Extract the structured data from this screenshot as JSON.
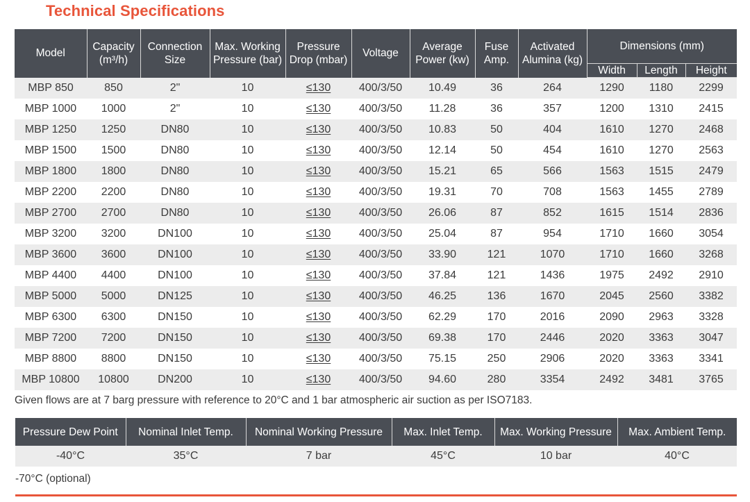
{
  "title": "Technical Specifications",
  "spec_table": {
    "headers": {
      "model": "Model",
      "capacity": "Capacity (m³/h)",
      "connection_size": "Connection Size",
      "max_working_pressure": "Max. Working Pressure (bar)",
      "pressure_drop": "Pressure Drop (mbar)",
      "voltage": "Voltage",
      "average_power": "Average Power (kw)",
      "fuse_amp": "Fuse Amp.",
      "activated_alumina": "Activated Alumina (kg)",
      "dimensions": "Dimensions (mm)",
      "width": "Width",
      "length": "Length",
      "height": "Height"
    },
    "rows": [
      [
        "MBP 850",
        "850",
        "2\"",
        "10",
        "≤130",
        "400/3/50",
        "10.49",
        "36",
        "264",
        "1290",
        "1180",
        "2299"
      ],
      [
        "MBP 1000",
        "1000",
        "2\"",
        "10",
        "≤130",
        "400/3/50",
        "11.28",
        "36",
        "357",
        "1200",
        "1310",
        "2415"
      ],
      [
        "MBP 1250",
        "1250",
        "DN80",
        "10",
        "≤130",
        "400/3/50",
        "10.83",
        "50",
        "404",
        "1610",
        "1270",
        "2468"
      ],
      [
        "MBP 1500",
        "1500",
        "DN80",
        "10",
        "≤130",
        "400/3/50",
        "12.14",
        "50",
        "454",
        "1610",
        "1270",
        "2563"
      ],
      [
        "MBP 1800",
        "1800",
        "DN80",
        "10",
        "≤130",
        "400/3/50",
        "15.21",
        "65",
        "566",
        "1563",
        "1515",
        "2479"
      ],
      [
        "MBP 2200",
        "2200",
        "DN80",
        "10",
        "≤130",
        "400/3/50",
        "19.31",
        "70",
        "708",
        "1563",
        "1455",
        "2789"
      ],
      [
        "MBP 2700",
        "2700",
        "DN80",
        "10",
        "≤130",
        "400/3/50",
        "26.06",
        "87",
        "852",
        "1615",
        "1514",
        "2836"
      ],
      [
        "MBP 3200",
        "3200",
        "DN100",
        "10",
        "≤130",
        "400/3/50",
        "25.04",
        "87",
        "954",
        "1710",
        "1660",
        "3054"
      ],
      [
        "MBP 3600",
        "3600",
        "DN100",
        "10",
        "≤130",
        "400/3/50",
        "33.90",
        "121",
        "1070",
        "1710",
        "1660",
        "3268"
      ],
      [
        "MBP 4400",
        "4400",
        "DN100",
        "10",
        "≤130",
        "400/3/50",
        "37.84",
        "121",
        "1436",
        "1975",
        "2492",
        "2910"
      ],
      [
        "MBP 5000",
        "5000",
        "DN125",
        "10",
        "≤130",
        "400/3/50",
        "46.25",
        "136",
        "1670",
        "2045",
        "2560",
        "3382"
      ],
      [
        "MBP 6300",
        "6300",
        "DN150",
        "10",
        "≤130",
        "400/3/50",
        "62.29",
        "170",
        "2016",
        "2090",
        "2963",
        "3328"
      ],
      [
        "MBP 7200",
        "7200",
        "DN150",
        "10",
        "≤130",
        "400/3/50",
        "69.38",
        "170",
        "2446",
        "2020",
        "3363",
        "3047"
      ],
      [
        "MBP 8800",
        "8800",
        "DN150",
        "10",
        "≤130",
        "400/3/50",
        "75.15",
        "250",
        "2906",
        "2020",
        "3363",
        "3341"
      ],
      [
        "MBP 10800",
        "10800",
        "DN200",
        "10",
        "≤130",
        "400/3/50",
        "94.60",
        "280",
        "3354",
        "2492",
        "3481",
        "3765"
      ]
    ]
  },
  "note": "Given flows are at 7 barg pressure with reference to 20°C and 1 bar atmospheric air suction as per ISO7183.",
  "conditions_table": {
    "headers": {
      "pressure_dew_point": "Pressure Dew Point",
      "nominal_inlet_temp": "Nominal Inlet Temp.",
      "nominal_working_pressure": "Nominal Working Pressure",
      "max_inlet_temp": "Max. Inlet Temp.",
      "max_working_pressure": "Max. Working Pressure",
      "max_ambient_temp": "Max. Ambient Temp."
    },
    "values": {
      "pressure_dew_point": "-40°C",
      "nominal_inlet_temp": "35°C",
      "nominal_working_pressure": "7 bar",
      "max_inlet_temp": "45°C",
      "max_working_pressure": "10 bar",
      "max_ambient_temp": "40°C"
    }
  },
  "optional_note": "-70°C (optional)",
  "colors": {
    "accent": "#e8553a",
    "header_bg": "#4a4e55",
    "stripe": "#ececec"
  }
}
